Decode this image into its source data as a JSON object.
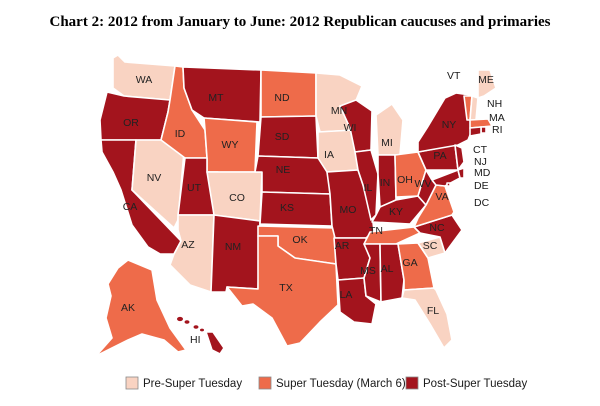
{
  "title": "Chart 2: 2012 from January to June: 2012 Republican caucuses and primaries",
  "colors": {
    "pre_super_tuesday": "#f9d3c2",
    "super_tuesday": "#ee6b4a",
    "post_super_tuesday": "#a3141d"
  },
  "legend": [
    {
      "key": "pre_super_tuesday",
      "label": "Pre-Super Tuesday"
    },
    {
      "key": "super_tuesday",
      "label": "Super Tuesday (March 6)"
    },
    {
      "key": "post_super_tuesday",
      "label": "Post-Super Tuesday"
    }
  ],
  "states": [
    {
      "abbr": "WA",
      "group": "pre_super_tuesday"
    },
    {
      "abbr": "OR",
      "group": "post_super_tuesday"
    },
    {
      "abbr": "CA",
      "group": "post_super_tuesday"
    },
    {
      "abbr": "NV",
      "group": "pre_super_tuesday"
    },
    {
      "abbr": "ID",
      "group": "super_tuesday"
    },
    {
      "abbr": "MT",
      "group": "post_super_tuesday"
    },
    {
      "abbr": "WY",
      "group": "super_tuesday"
    },
    {
      "abbr": "UT",
      "group": "post_super_tuesday"
    },
    {
      "abbr": "AZ",
      "group": "pre_super_tuesday"
    },
    {
      "abbr": "CO",
      "group": "pre_super_tuesday"
    },
    {
      "abbr": "NM",
      "group": "post_super_tuesday"
    },
    {
      "abbr": "ND",
      "group": "super_tuesday"
    },
    {
      "abbr": "SD",
      "group": "post_super_tuesday"
    },
    {
      "abbr": "NE",
      "group": "post_super_tuesday"
    },
    {
      "abbr": "KS",
      "group": "post_super_tuesday"
    },
    {
      "abbr": "OK",
      "group": "super_tuesday"
    },
    {
      "abbr": "TX",
      "group": "super_tuesday"
    },
    {
      "abbr": "MN",
      "group": "pre_super_tuesday"
    },
    {
      "abbr": "IA",
      "group": "pre_super_tuesday"
    },
    {
      "abbr": "MO",
      "group": "post_super_tuesday"
    },
    {
      "abbr": "AR",
      "group": "post_super_tuesday"
    },
    {
      "abbr": "LA",
      "group": "post_super_tuesday"
    },
    {
      "abbr": "WI",
      "group": "post_super_tuesday"
    },
    {
      "abbr": "IL",
      "group": "post_super_tuesday"
    },
    {
      "abbr": "MI",
      "group": "pre_super_tuesday"
    },
    {
      "abbr": "IN",
      "group": "post_super_tuesday"
    },
    {
      "abbr": "OH",
      "group": "super_tuesday"
    },
    {
      "abbr": "KY",
      "group": "post_super_tuesday"
    },
    {
      "abbr": "TN",
      "group": "super_tuesday"
    },
    {
      "abbr": "MS",
      "group": "post_super_tuesday"
    },
    {
      "abbr": "AL",
      "group": "post_super_tuesday"
    },
    {
      "abbr": "GA",
      "group": "super_tuesday"
    },
    {
      "abbr": "FL",
      "group": "pre_super_tuesday"
    },
    {
      "abbr": "SC",
      "group": "pre_super_tuesday"
    },
    {
      "abbr": "NC",
      "group": "post_super_tuesday"
    },
    {
      "abbr": "VA",
      "group": "super_tuesday"
    },
    {
      "abbr": "WV",
      "group": "post_super_tuesday"
    },
    {
      "abbr": "PA",
      "group": "post_super_tuesday"
    },
    {
      "abbr": "NY",
      "group": "post_super_tuesday"
    },
    {
      "abbr": "VT",
      "group": "super_tuesday"
    },
    {
      "abbr": "NH",
      "group": "pre_super_tuesday"
    },
    {
      "abbr": "ME",
      "group": "pre_super_tuesday"
    },
    {
      "abbr": "MA",
      "group": "super_tuesday"
    },
    {
      "abbr": "RI",
      "group": "post_super_tuesday"
    },
    {
      "abbr": "CT",
      "group": "post_super_tuesday"
    },
    {
      "abbr": "NJ",
      "group": "post_super_tuesday"
    },
    {
      "abbr": "MD",
      "group": "post_super_tuesday"
    },
    {
      "abbr": "DE",
      "group": "post_super_tuesday"
    },
    {
      "abbr": "DC",
      "group": "post_super_tuesday"
    },
    {
      "abbr": "AK",
      "group": "super_tuesday"
    },
    {
      "abbr": "HI",
      "group": "post_super_tuesday"
    }
  ]
}
